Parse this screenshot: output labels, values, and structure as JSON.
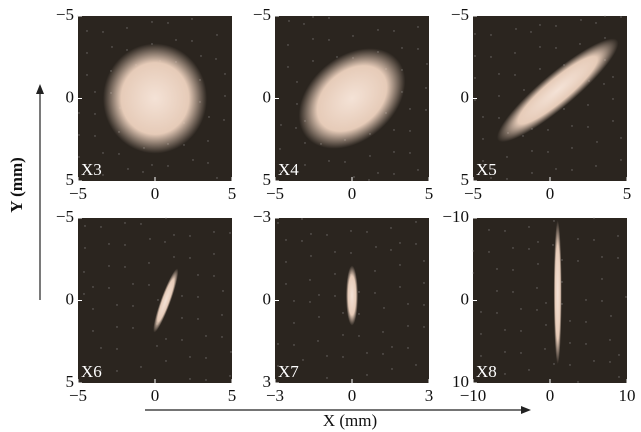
{
  "x_label": "X (mm)",
  "y_label": "Y (mm)",
  "chart_data": [
    {
      "type": "image",
      "label": "X3",
      "yaxis_inverted": true,
      "xlim": [
        -5,
        5
      ],
      "ylim": [
        -5,
        5
      ],
      "xticks": [
        {
          "value": -5,
          "label": "−5"
        },
        0,
        5
      ],
      "yticks": [
        {
          "value": -5,
          "label": "−5"
        },
        0,
        5
      ]
    },
    {
      "type": "image",
      "label": "X4",
      "yaxis_inverted": true,
      "xlim": [
        -5,
        5
      ],
      "ylim": [
        -5,
        5
      ],
      "xticks": [
        {
          "value": -5,
          "label": "−5"
        },
        0,
        5
      ],
      "yticks": [
        {
          "value": -5,
          "label": "−5"
        },
        0,
        5
      ]
    },
    {
      "type": "image",
      "label": "X5",
      "yaxis_inverted": true,
      "xlim": [
        -5,
        5
      ],
      "ylim": [
        -5,
        5
      ],
      "xticks": [
        {
          "value": -5,
          "label": "−5"
        },
        0,
        5
      ],
      "yticks": [
        {
          "value": -5,
          "label": "−5"
        },
        0,
        5
      ]
    },
    {
      "type": "image",
      "label": "X6",
      "yaxis_inverted": true,
      "xlim": [
        -5,
        5
      ],
      "ylim": [
        -5,
        5
      ],
      "xticks": [
        {
          "value": -5,
          "label": "−5"
        },
        0,
        5
      ],
      "yticks": [
        {
          "value": -5,
          "label": "−5"
        },
        0,
        5
      ]
    },
    {
      "type": "image",
      "label": "X7",
      "yaxis_inverted": true,
      "xlim": [
        -3,
        3
      ],
      "ylim": [
        -3,
        3
      ],
      "xticks": [
        {
          "value": -3,
          "label": "−3"
        },
        0,
        3
      ],
      "yticks": [
        {
          "value": -3,
          "label": "−3"
        },
        0,
        3
      ]
    },
    {
      "type": "image",
      "label": "X8",
      "yaxis_inverted": true,
      "xlim": [
        -10,
        10
      ],
      "ylim": [
        -10,
        10
      ],
      "xticks": [
        {
          "value": -10,
          "label": "−10"
        },
        0,
        10
      ],
      "yticks": [
        {
          "value": -10,
          "label": "−10"
        },
        0,
        10
      ]
    }
  ]
}
